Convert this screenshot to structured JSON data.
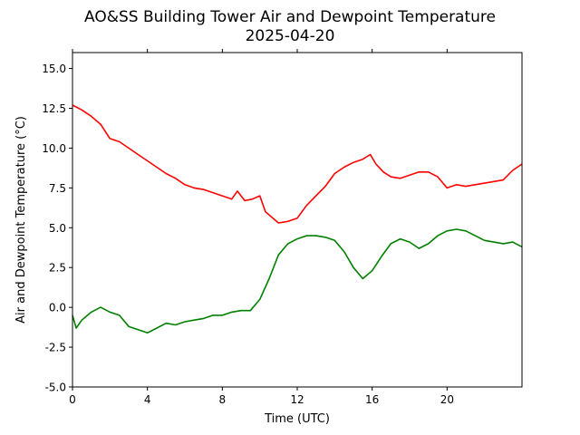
{
  "chart_data": {
    "type": "line",
    "title": "AO&SS Building Tower Air and Dewpoint Temperature",
    "subtitle": "2025-04-20",
    "xlabel": "Time (UTC)",
    "ylabel": "Air and Dewpoint Temperature (°C)",
    "xlim": [
      0,
      24
    ],
    "ylim": [
      -5,
      16
    ],
    "xticks": [
      0,
      4,
      8,
      12,
      16,
      20
    ],
    "yticks": [
      -5.0,
      -2.5,
      0.0,
      2.5,
      5.0,
      7.5,
      10.0,
      12.5,
      15.0
    ],
    "grid": false,
    "legend": "none",
    "series": [
      {
        "color": "#ff0000",
        "x": [
          0,
          0.5,
          1,
          1.5,
          2,
          2.5,
          3,
          3.5,
          4,
          4.5,
          5,
          5.5,
          6,
          6.5,
          7,
          7.5,
          8,
          8.5,
          8.8,
          9.2,
          9.6,
          10,
          10.3,
          10.6,
          11,
          11.5,
          12,
          12.5,
          13,
          13.5,
          14,
          14.5,
          15,
          15.5,
          15.9,
          16.2,
          16.6,
          17,
          17.5,
          18,
          18.5,
          19,
          19.5,
          20,
          20.5,
          21,
          21.5,
          22,
          22.5,
          23,
          23.5,
          24
        ],
        "y": [
          12.7,
          12.4,
          12.0,
          11.5,
          10.6,
          10.4,
          10.0,
          9.6,
          9.2,
          8.8,
          8.4,
          8.1,
          7.7,
          7.5,
          7.4,
          7.2,
          7.0,
          6.8,
          7.3,
          6.7,
          6.8,
          7.0,
          6.0,
          5.7,
          5.3,
          5.4,
          5.6,
          6.4,
          7.0,
          7.6,
          8.4,
          8.8,
          9.1,
          9.3,
          9.6,
          9.0,
          8.5,
          8.2,
          8.1,
          8.3,
          8.5,
          8.5,
          8.2,
          7.5,
          7.7,
          7.6,
          7.7,
          7.8,
          7.9,
          8.0,
          8.6,
          9.0
        ]
      },
      {
        "color": "#008000",
        "x": [
          0,
          0.2,
          0.5,
          1,
          1.5,
          2,
          2.5,
          3,
          3.5,
          4,
          4.5,
          5,
          5.5,
          6,
          6.5,
          7,
          7.5,
          8,
          8.5,
          9,
          9.5,
          10,
          10.5,
          11,
          11.5,
          12,
          12.5,
          13,
          13.5,
          14,
          14.5,
          15,
          15.5,
          16,
          16.5,
          17,
          17.5,
          18,
          18.5,
          19,
          19.5,
          20,
          20.5,
          21,
          21.5,
          22,
          22.5,
          23,
          23.5,
          24
        ],
        "y": [
          -0.5,
          -1.3,
          -0.8,
          -0.3,
          0.0,
          -0.3,
          -0.5,
          -1.2,
          -1.4,
          -1.6,
          -1.3,
          -1.0,
          -1.1,
          -0.9,
          -0.8,
          -0.7,
          -0.5,
          -0.5,
          -0.3,
          -0.2,
          -0.2,
          0.5,
          1.8,
          3.3,
          4.0,
          4.3,
          4.5,
          4.5,
          4.4,
          4.2,
          3.5,
          2.5,
          1.8,
          2.3,
          3.2,
          4.0,
          4.3,
          4.1,
          3.7,
          4.0,
          4.5,
          4.8,
          4.9,
          4.8,
          4.5,
          4.2,
          4.1,
          4.0,
          4.1,
          3.8
        ]
      }
    ]
  }
}
